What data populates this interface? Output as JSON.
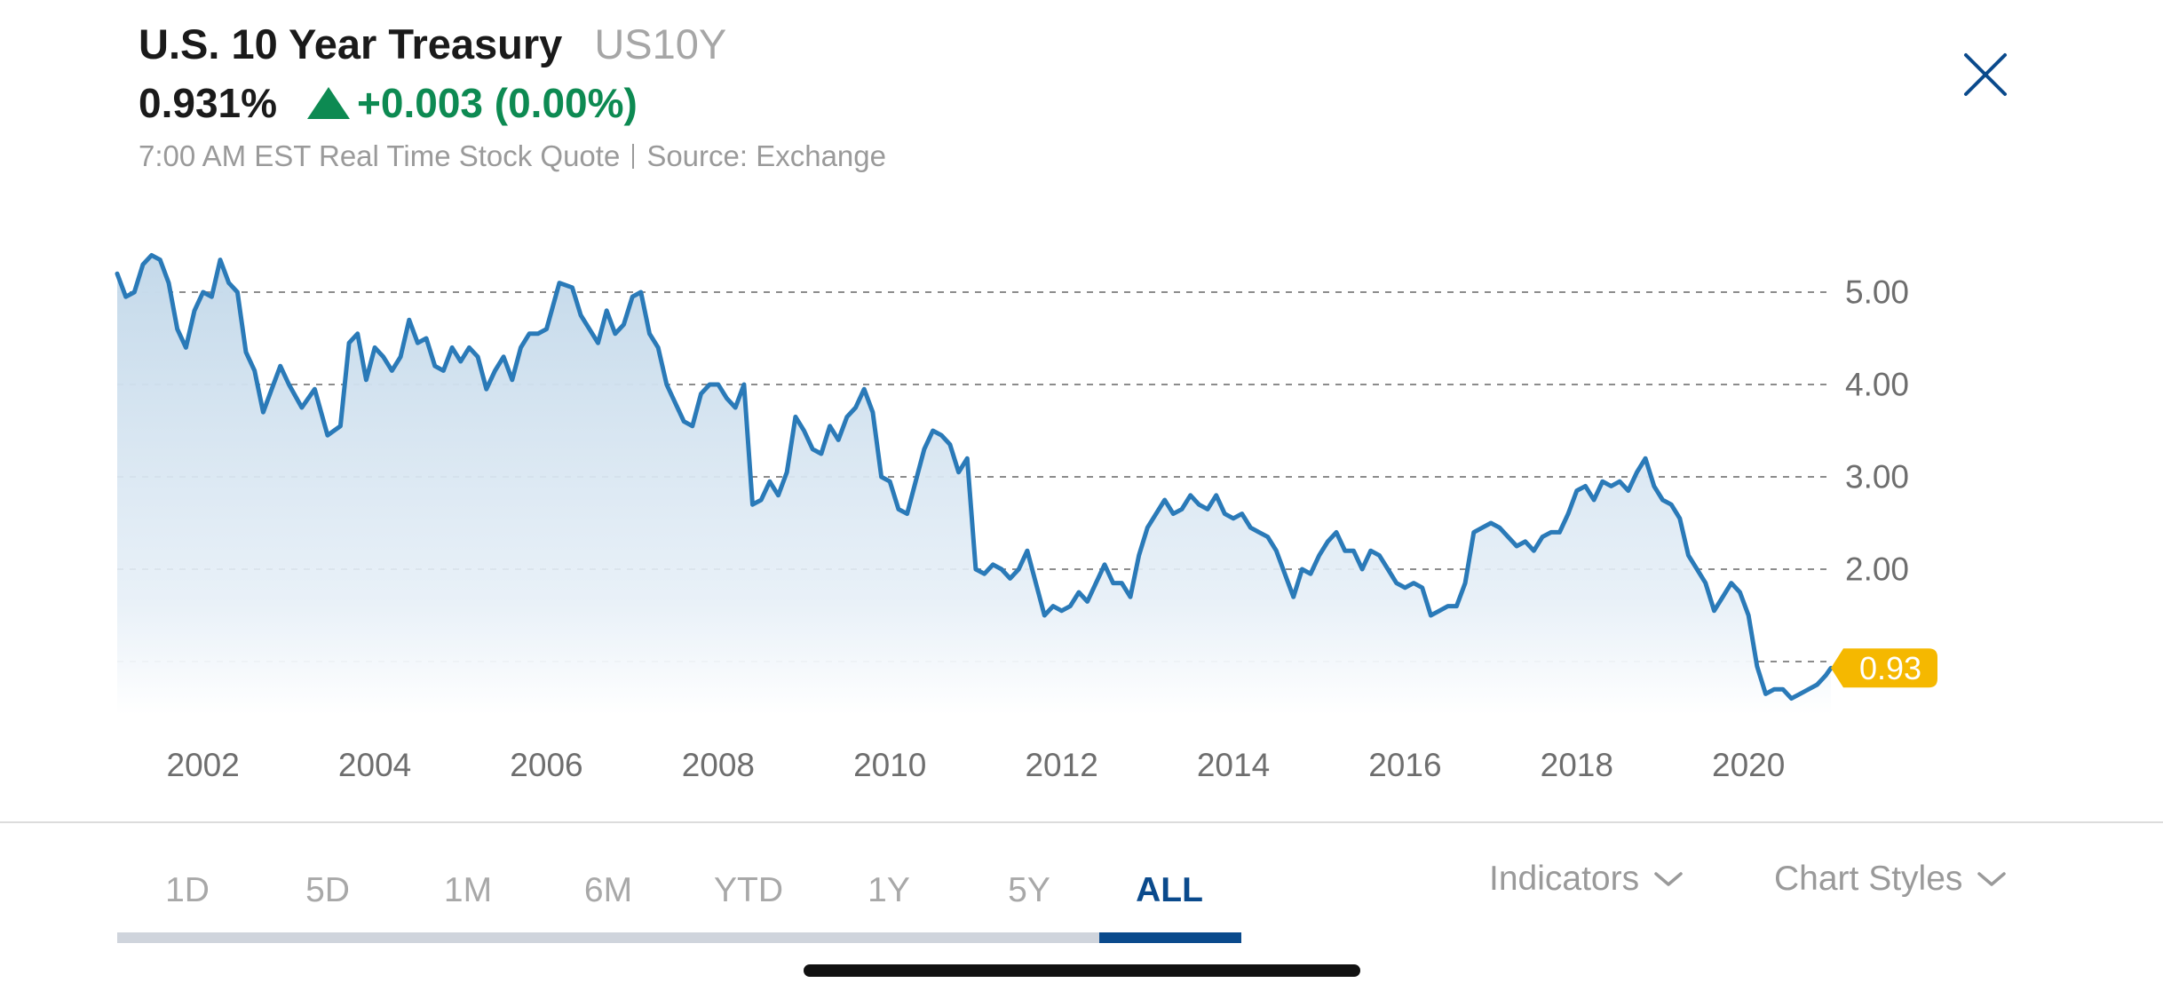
{
  "quote": {
    "title": "U.S. 10 Year Treasury",
    "symbol": "US10Y",
    "price": "0.931%",
    "change": "+0.003 (0.00%)",
    "timestamp": "7:00 AM EST Real Time Stock Quote",
    "source": "Source: Exchange",
    "trend_icon": "up-triangle-icon",
    "trend_color": "#0d8a52"
  },
  "close_icon": "close-icon",
  "chart_data": {
    "type": "area",
    "title": "",
    "xlabel": "",
    "ylabel": "",
    "x_ticks": [
      "2002",
      "2004",
      "2006",
      "2008",
      "2010",
      "2012",
      "2014",
      "2016",
      "2018",
      "2020"
    ],
    "y_ticks": [
      "5.00",
      "4.00",
      "3.00",
      "2.00"
    ],
    "xlim": [
      2001.0,
      2020.96
    ],
    "ylim": [
      0.4,
      5.6
    ],
    "grid": "horizontal dashed",
    "y_axis_side": "right",
    "line_color": "#2a7ab8",
    "last_value_label": "0.93",
    "last_value_color": "#f5b800",
    "series": [
      {
        "name": "",
        "x": [
          2001.0,
          2001.1,
          2001.2,
          2001.3,
          2001.4,
          2001.5,
          2001.6,
          2001.7,
          2001.8,
          2001.9,
          2002.0,
          2002.1,
          2002.2,
          2002.3,
          2002.4,
          2002.5,
          2002.6,
          2002.7,
          2002.8,
          2002.9,
          2003.0,
          2003.15,
          2003.3,
          2003.45,
          2003.6,
          2003.7,
          2003.8,
          2003.9,
          2004.0,
          2004.1,
          2004.2,
          2004.3,
          2004.4,
          2004.5,
          2004.6,
          2004.7,
          2004.8,
          2004.9,
          2005.0,
          2005.1,
          2005.2,
          2005.3,
          2005.4,
          2005.5,
          2005.6,
          2005.7,
          2005.8,
          2005.9,
          2006.0,
          2006.15,
          2006.3,
          2006.4,
          2006.5,
          2006.6,
          2006.7,
          2006.8,
          2006.9,
          2007.0,
          2007.1,
          2007.2,
          2007.3,
          2007.4,
          2007.5,
          2007.6,
          2007.7,
          2007.8,
          2007.9,
          2008.0,
          2008.1,
          2008.2,
          2008.3,
          2008.4,
          2008.5,
          2008.6,
          2008.7,
          2008.8,
          2008.9,
          2009.0,
          2009.1,
          2009.2,
          2009.3,
          2009.4,
          2009.5,
          2009.6,
          2009.7,
          2009.8,
          2009.9,
          2010.0,
          2010.1,
          2010.2,
          2010.3,
          2010.4,
          2010.5,
          2010.6,
          2010.7,
          2010.8,
          2010.9,
          2011.0,
          2011.1,
          2011.2,
          2011.3,
          2011.4,
          2011.5,
          2011.6,
          2011.7,
          2011.8,
          2011.9,
          2012.0,
          2012.1,
          2012.2,
          2012.3,
          2012.4,
          2012.5,
          2012.6,
          2012.7,
          2012.8,
          2012.9,
          2013.0,
          2013.1,
          2013.2,
          2013.3,
          2013.4,
          2013.5,
          2013.6,
          2013.7,
          2013.8,
          2013.9,
          2014.0,
          2014.1,
          2014.2,
          2014.3,
          2014.4,
          2014.5,
          2014.6,
          2014.7,
          2014.8,
          2014.9,
          2015.0,
          2015.1,
          2015.2,
          2015.3,
          2015.4,
          2015.5,
          2015.6,
          2015.7,
          2015.8,
          2015.9,
          2016.0,
          2016.1,
          2016.2,
          2016.3,
          2016.4,
          2016.5,
          2016.6,
          2016.7,
          2016.8,
          2016.9,
          2017.0,
          2017.1,
          2017.2,
          2017.3,
          2017.4,
          2017.5,
          2017.6,
          2017.7,
          2017.8,
          2017.9,
          2018.0,
          2018.1,
          2018.2,
          2018.3,
          2018.4,
          2018.5,
          2018.6,
          2018.7,
          2018.8,
          2018.9,
          2019.0,
          2019.1,
          2019.2,
          2019.3,
          2019.4,
          2019.5,
          2019.6,
          2019.7,
          2019.8,
          2019.9,
          2020.0,
          2020.1,
          2020.2,
          2020.3,
          2020.4,
          2020.5,
          2020.6,
          2020.7,
          2020.8,
          2020.9,
          2020.96
        ],
        "values": [
          5.2,
          4.95,
          5.0,
          5.3,
          5.4,
          5.35,
          5.1,
          4.6,
          4.4,
          4.8,
          5.0,
          4.95,
          5.35,
          5.1,
          5.0,
          4.35,
          4.15,
          3.7,
          3.95,
          4.2,
          4.0,
          3.75,
          3.95,
          3.45,
          3.55,
          4.45,
          4.55,
          4.05,
          4.4,
          4.3,
          4.15,
          4.3,
          4.7,
          4.45,
          4.5,
          4.2,
          4.15,
          4.4,
          4.25,
          4.4,
          4.3,
          3.95,
          4.15,
          4.3,
          4.05,
          4.4,
          4.55,
          4.55,
          4.6,
          5.1,
          5.05,
          4.75,
          4.6,
          4.45,
          4.8,
          4.55,
          4.65,
          4.95,
          5.0,
          4.55,
          4.4,
          4.0,
          3.8,
          3.6,
          3.55,
          3.9,
          4.0,
          4.0,
          3.85,
          3.75,
          4.0,
          2.7,
          2.75,
          2.95,
          2.8,
          3.05,
          3.65,
          3.5,
          3.3,
          3.25,
          3.55,
          3.4,
          3.65,
          3.75,
          3.95,
          3.7,
          3.0,
          2.95,
          2.65,
          2.6,
          2.95,
          3.3,
          3.5,
          3.45,
          3.35,
          3.05,
          3.2,
          2.0,
          1.95,
          2.05,
          2.0,
          1.9,
          2.0,
          2.2,
          1.85,
          1.5,
          1.6,
          1.55,
          1.6,
          1.75,
          1.65,
          1.85,
          2.05,
          1.85,
          1.85,
          1.7,
          2.15,
          2.45,
          2.6,
          2.75,
          2.6,
          2.65,
          2.8,
          2.7,
          2.65,
          2.8,
          2.6,
          2.55,
          2.6,
          2.45,
          2.4,
          2.35,
          2.2,
          1.95,
          1.7,
          2.0,
          1.95,
          2.15,
          2.3,
          2.4,
          2.2,
          2.2,
          2.0,
          2.2,
          2.15,
          2.0,
          1.85,
          1.8,
          1.85,
          1.8,
          1.5,
          1.55,
          1.6,
          1.6,
          1.85,
          2.4,
          2.45,
          2.5,
          2.45,
          2.35,
          2.25,
          2.3,
          2.2,
          2.35,
          2.4,
          2.4,
          2.6,
          2.85,
          2.9,
          2.75,
          2.95,
          2.9,
          2.95,
          2.85,
          3.05,
          3.2,
          2.9,
          2.75,
          2.7,
          2.55,
          2.15,
          2.0,
          1.85,
          1.55,
          1.7,
          1.85,
          1.75,
          1.5,
          0.95,
          0.65,
          0.7,
          0.7,
          0.6,
          0.65,
          0.7,
          0.75,
          0.85,
          0.93
        ]
      }
    ]
  },
  "timeframes": {
    "items": [
      "1D",
      "5D",
      "1M",
      "6M",
      "YTD",
      "1Y",
      "5Y",
      "ALL"
    ],
    "active": "ALL",
    "active_color": "#0a4a8c"
  },
  "controls": {
    "indicators_label": "Indicators",
    "chart_styles_label": "Chart Styles",
    "chevron_icon": "chevron-down-icon"
  }
}
